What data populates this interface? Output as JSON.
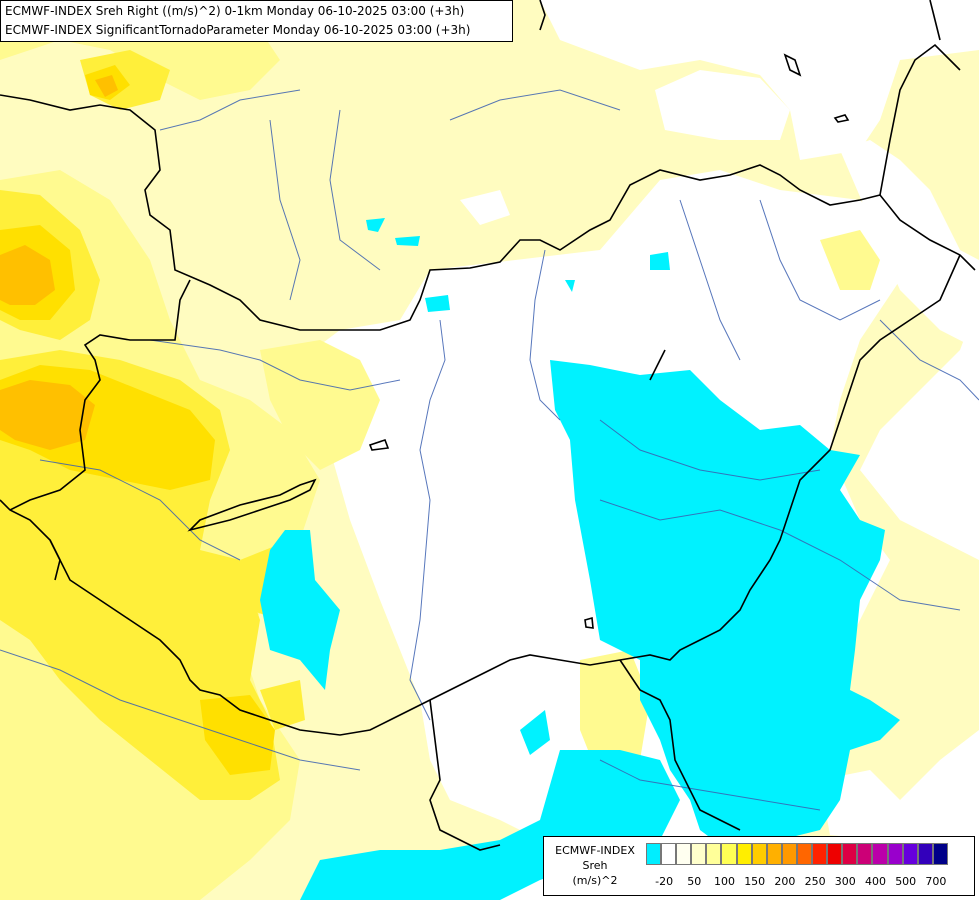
{
  "header": {
    "line1": "ECMWF-INDEX Sreh Right ((m/s)^2) 0-1km Monday 06-10-2025 03:00 (+3h)",
    "line2": "ECMWF-INDEX SignificantTornadoParameter Monday 06-10-2025 03:00 (+3h)"
  },
  "legend": {
    "title": "ECMWF-INDEX",
    "variable": "Sreh",
    "unit": "(m/s)^2",
    "colors": [
      "#00eeff",
      "#ffffff",
      "#fffff0",
      "#ffffcc",
      "#ffff99",
      "#ffff55",
      "#ffee00",
      "#ffcc00",
      "#ffb000",
      "#ff9900",
      "#ff6600",
      "#ff2200",
      "#ee0000",
      "#dd0044",
      "#cc0077",
      "#bb00aa",
      "#9900cc",
      "#6600dd",
      "#3300bb",
      "#000088"
    ],
    "ticks": [
      "-20",
      "50",
      "100",
      "150",
      "200",
      "250",
      "300",
      "400",
      "500",
      "700"
    ]
  },
  "palette": {
    "white": "#ffffff",
    "pale_yellow": "#fffcc0",
    "light_yellow": "#fffa90",
    "yellow": "#ffef3a",
    "bright_yellow": "#ffe000",
    "orange": "#ffc000",
    "cyan": "#00f2ff",
    "border": "#000000",
    "river": "#3a5fb0"
  }
}
